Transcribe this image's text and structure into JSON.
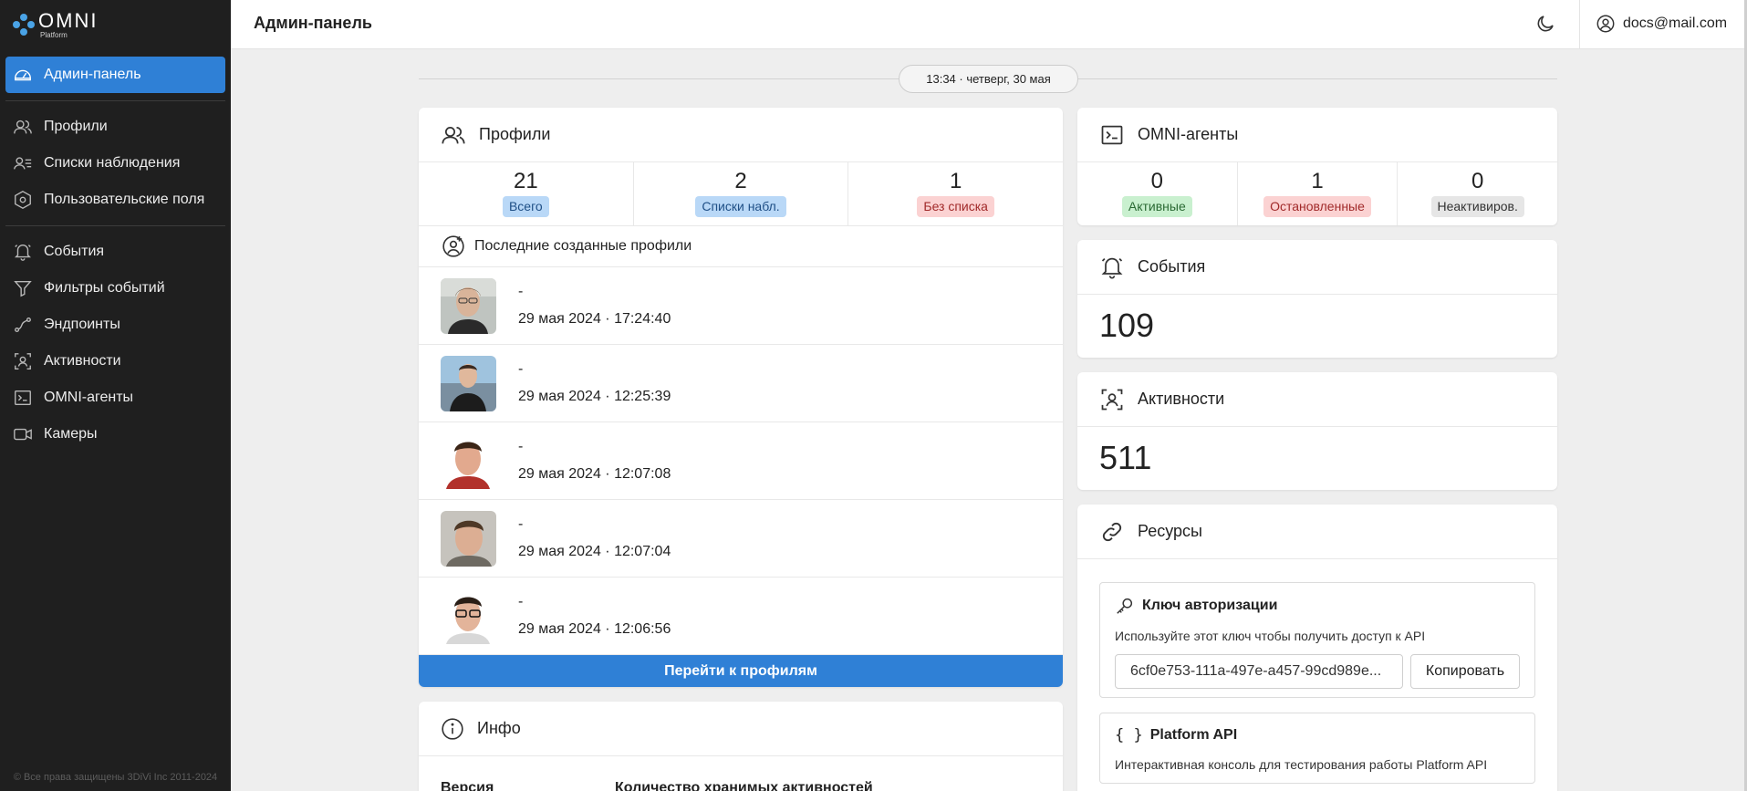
{
  "logo": {
    "brand": "OMNI",
    "sub": "Platform"
  },
  "colors": {
    "accent": "#2f80d6",
    "sidebar_bg": "#1f1f1f"
  },
  "sidebar": {
    "items": [
      {
        "label": "Админ-панель",
        "icon": "dashboard-icon",
        "active": true
      },
      {
        "label": "Профили",
        "icon": "users-icon"
      },
      {
        "label": "Списки наблюдения",
        "icon": "user-list-icon"
      },
      {
        "label": "Пользовательские поля",
        "icon": "hexagon-icon"
      },
      {
        "label": "События",
        "icon": "bell-icon"
      },
      {
        "label": "Фильтры событий",
        "icon": "filter-icon"
      },
      {
        "label": "Эндпоинты",
        "icon": "route-icon"
      },
      {
        "label": "Активности",
        "icon": "scan-user-icon"
      },
      {
        "label": "OMNI-агенты",
        "icon": "terminal-icon"
      },
      {
        "label": "Камеры",
        "icon": "camera-icon"
      }
    ],
    "copyright": "© Все права защищены 3DiVi Inc 2011-2024"
  },
  "header": {
    "title": "Админ-панель",
    "user_email": "docs@mail.com",
    "theme_icon": "moon-icon"
  },
  "date_pill": "13:34 · четверг, 30 мая",
  "profiles": {
    "title": "Профили",
    "stats": [
      {
        "value": "21",
        "label": "Всего",
        "color": "blue"
      },
      {
        "value": "2",
        "label": "Списки набл.",
        "color": "blue"
      },
      {
        "value": "1",
        "label": "Без списка",
        "color": "red"
      }
    ],
    "recent_title": "Последние созданные профили",
    "recent": [
      {
        "name": "-",
        "date": "29 мая 2024 · 17:24:40"
      },
      {
        "name": "-",
        "date": "29 мая 2024 · 12:25:39"
      },
      {
        "name": "-",
        "date": "29 мая 2024 · 12:07:08"
      },
      {
        "name": "-",
        "date": "29 мая 2024 · 12:07:04"
      },
      {
        "name": "-",
        "date": "29 мая 2024 · 12:06:56"
      }
    ],
    "go_button": "Перейти к профилям"
  },
  "info": {
    "title": "Инфо",
    "version_label": "Версия",
    "retention_label": "Количество хранимых активностей"
  },
  "agents": {
    "title": "OMNI-агенты",
    "stats": [
      {
        "value": "0",
        "label": "Активные",
        "color": "green"
      },
      {
        "value": "1",
        "label": "Остановленные",
        "color": "red"
      },
      {
        "value": "0",
        "label": "Неактивиров.",
        "color": "gray"
      }
    ]
  },
  "events": {
    "title": "События",
    "count": "109"
  },
  "activities": {
    "title": "Активности",
    "count": "511"
  },
  "resources": {
    "title": "Ресурсы",
    "auth_key": {
      "title": "Ключ авторизации",
      "description": "Используйте этот ключ чтобы получить доступ к API",
      "value": "6cf0e753-111a-497e-a457-99cd989e...",
      "copy_label": "Копировать"
    },
    "platform_api": {
      "title": "Platform API",
      "description": "Интерактивная консоль для тестирования работы Platform API"
    }
  }
}
